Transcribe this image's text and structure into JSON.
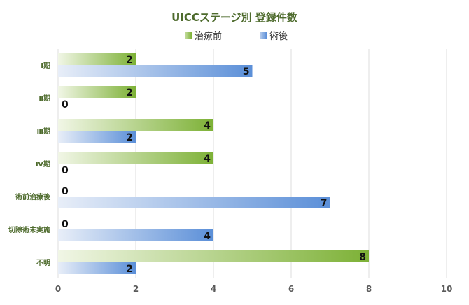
{
  "chart_data": {
    "type": "bar",
    "orientation": "horizontal",
    "title": "UICCステージ別 登録件数",
    "categories": [
      "Ⅰ期",
      "Ⅱ期",
      "Ⅲ期",
      "Ⅳ期",
      "術前治療後",
      "切除術未実施",
      "不明"
    ],
    "series": [
      {
        "name": "治療前",
        "values": [
          2,
          2,
          4,
          4,
          0,
          0,
          8
        ],
        "color": "#7db136"
      },
      {
        "name": "術後",
        "values": [
          5,
          0,
          2,
          0,
          7,
          4,
          2
        ],
        "color": "#5b8fd8"
      }
    ],
    "xlim": [
      0,
      10
    ],
    "xticks": [
      0,
      2,
      4,
      6,
      8,
      10
    ],
    "grid": true,
    "legend": "top-center"
  }
}
